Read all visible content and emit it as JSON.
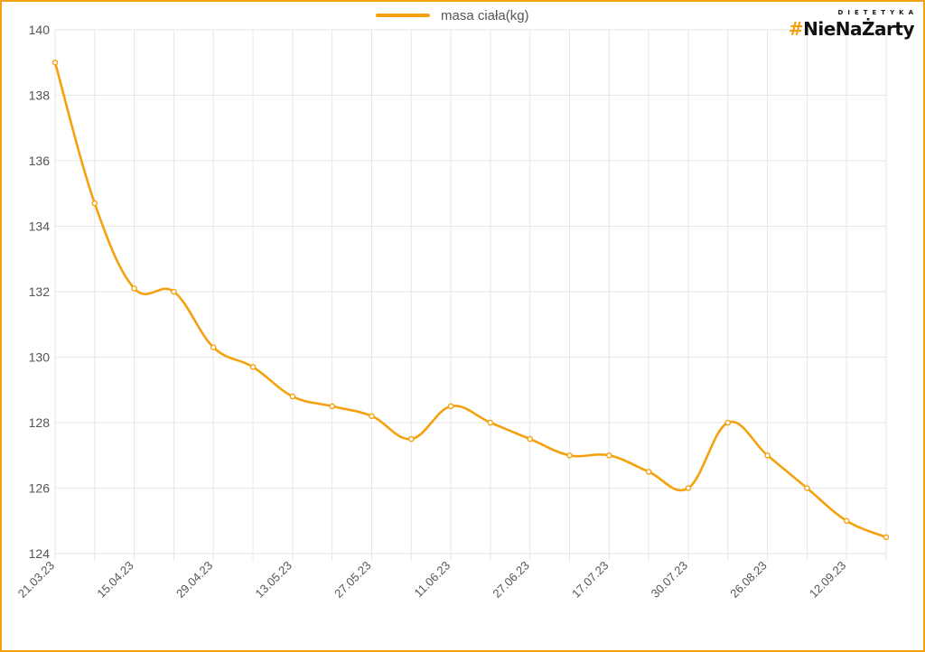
{
  "brand": {
    "top_text": "DIETETYKA",
    "hash": "#",
    "name": "NieNaŻarty"
  },
  "colors": {
    "line": "#f5a10f",
    "frame": "#f5a10f",
    "grid": "#e6e6e6",
    "text": "#555555"
  },
  "chart_data": {
    "type": "line",
    "title": "",
    "xlabel": "",
    "ylabel": "",
    "legend": {
      "position": "top-center"
    },
    "grid": true,
    "ylim": [
      124,
      140
    ],
    "yticks": [
      124,
      126,
      128,
      130,
      132,
      134,
      136,
      138,
      140
    ],
    "x_tick_labels": [
      "21.03.23",
      "15.04.23",
      "29.04.23",
      "13.05.23",
      "27.05.23",
      "11.06.23",
      "27.06.23",
      "17.07.23",
      "30.07.23",
      "26.08.23",
      "12.09.23"
    ],
    "series": [
      {
        "name": "masa ciała(kg)",
        "values": [
          139.0,
          134.7,
          132.1,
          132.0,
          130.3,
          129.7,
          128.8,
          128.5,
          128.2,
          127.5,
          128.5,
          128.0,
          127.5,
          127.0,
          127.0,
          126.5,
          126.0,
          128.0,
          127.0,
          126.0,
          125.0,
          124.5
        ]
      }
    ]
  }
}
